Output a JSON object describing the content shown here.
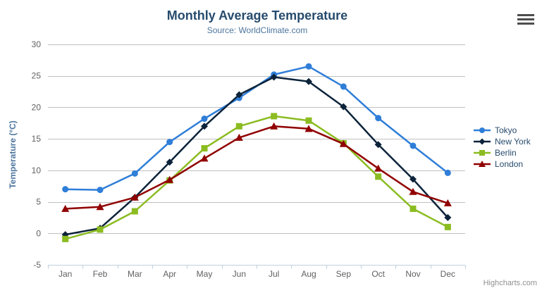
{
  "credits": "Highcharts.com",
  "chart_data": {
    "type": "line",
    "title": "Monthly Average Temperature",
    "subtitle": "Source: WorldClimate.com",
    "xlabel": "",
    "ylabel": "Temperature (°C)",
    "ylim": [
      -5,
      30
    ],
    "ytick_step": 5,
    "yticks": [
      -5,
      0,
      5,
      10,
      15,
      20,
      25,
      30
    ],
    "grid": true,
    "legend_position": "right",
    "categories": [
      "Jan",
      "Feb",
      "Mar",
      "Apr",
      "May",
      "Jun",
      "Jul",
      "Aug",
      "Sep",
      "Oct",
      "Nov",
      "Dec"
    ],
    "series": [
      {
        "name": "Tokyo",
        "color": "#2f7ed8",
        "marker": "circle",
        "values": [
          7.0,
          6.9,
          9.5,
          14.5,
          18.2,
          21.5,
          25.2,
          26.5,
          23.3,
          18.3,
          13.9,
          9.6
        ]
      },
      {
        "name": "New York",
        "color": "#0d233a",
        "marker": "diamond",
        "values": [
          -0.2,
          0.8,
          5.7,
          11.3,
          17.0,
          22.0,
          24.8,
          24.1,
          20.1,
          14.1,
          8.6,
          2.5
        ]
      },
      {
        "name": "Berlin",
        "color": "#8bbc21",
        "marker": "square",
        "values": [
          -0.9,
          0.6,
          3.5,
          8.4,
          13.5,
          17.0,
          18.6,
          17.9,
          14.3,
          9.0,
          3.9,
          1.0
        ]
      },
      {
        "name": "London",
        "color": "#910000",
        "marker": "triangle",
        "values": [
          3.9,
          4.2,
          5.7,
          8.5,
          11.9,
          15.2,
          17.0,
          16.6,
          14.2,
          10.3,
          6.6,
          4.8
        ]
      }
    ],
    "axis_colors": {
      "grid_line": "#c0c0c0",
      "axis_line": "#c0d0e0",
      "tick_label": "#606060",
      "axis_title": "#4d759e"
    }
  }
}
